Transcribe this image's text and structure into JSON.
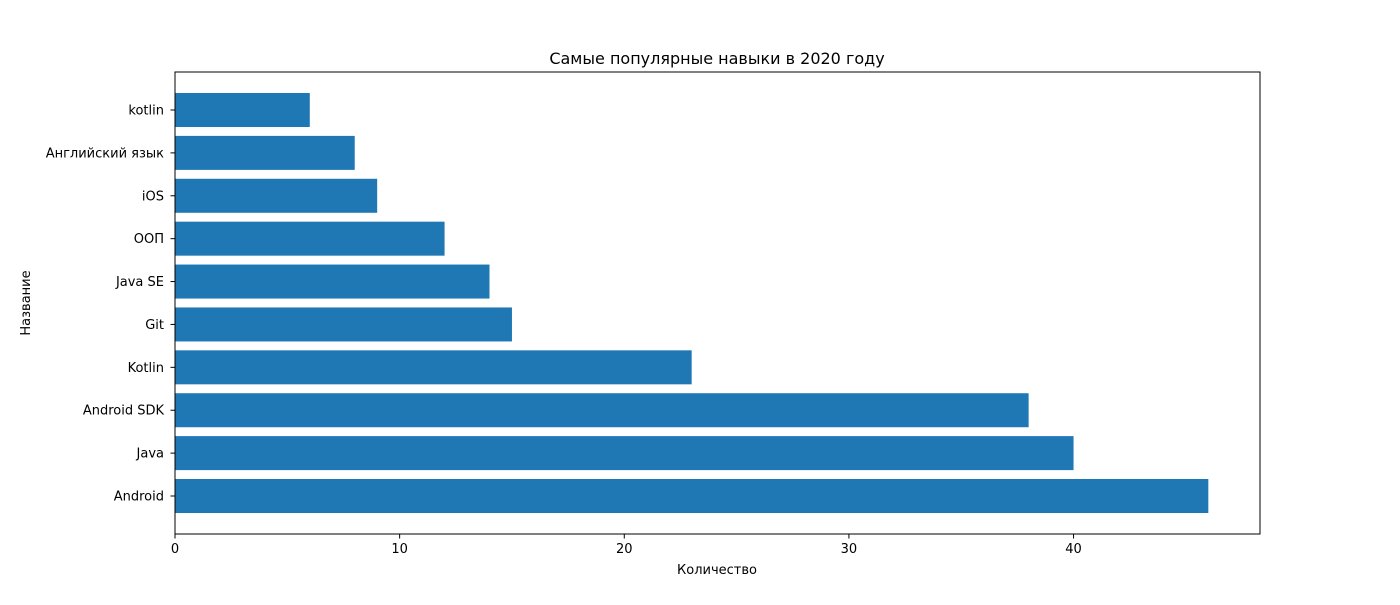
{
  "chart_data": {
    "type": "bar",
    "orientation": "horizontal",
    "title": "Самые популярные навыки в 2020 году",
    "xlabel": "Количество",
    "ylabel": "Название",
    "categories": [
      "Android",
      "Java",
      "Android SDK",
      "Kotlin",
      "Git",
      "Java SE",
      "ООП",
      "iOS",
      "Английский язык",
      "kotlin"
    ],
    "values": [
      46,
      40,
      38,
      23,
      15,
      14,
      12,
      9,
      8,
      6
    ],
    "xlim": [
      0,
      48.3
    ],
    "xticks": [
      0,
      10,
      20,
      30,
      40
    ],
    "grid": false,
    "bar_color": "#1f77b4"
  }
}
